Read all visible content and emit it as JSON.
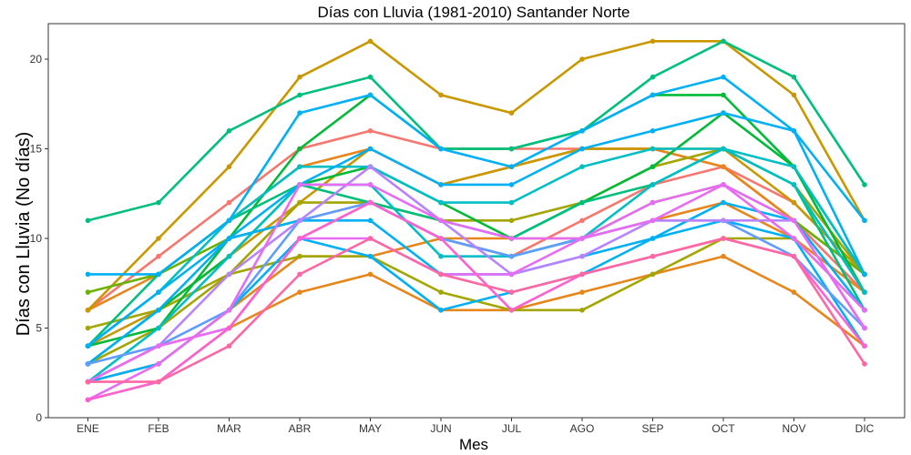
{
  "chart_data": {
    "type": "line",
    "title": "Días con Lluvia (1981-2010)  Santander Norte",
    "xlabel": "Mes",
    "ylabel": "Días con Lluvia (No días)",
    "categories": [
      "ENE",
      "FEB",
      "MAR",
      "ABR",
      "MAY",
      "JUN",
      "JUL",
      "AGO",
      "SEP",
      "OCT",
      "NOV",
      "DIC"
    ],
    "ylim": [
      0,
      22
    ],
    "yticks": [
      0,
      5,
      10,
      15,
      20
    ],
    "grid": false,
    "legend": "none",
    "series": [
      {
        "color": "#F8766D",
        "values": [
          6,
          9,
          12,
          15,
          16,
          15,
          15,
          15,
          15,
          14,
          12,
          8
        ]
      },
      {
        "color": "#F8766D",
        "values": [
          2,
          4,
          5,
          10,
          12,
          10,
          9,
          11,
          13,
          14,
          11,
          7
        ]
      },
      {
        "color": "#E7861B",
        "values": [
          1,
          2,
          5,
          7,
          8,
          6,
          6,
          7,
          8,
          9,
          7,
          4
        ]
      },
      {
        "color": "#E7861B",
        "values": [
          6,
          8,
          11,
          14,
          15,
          13,
          14,
          15,
          15,
          14,
          11,
          8
        ]
      },
      {
        "color": "#E7861B",
        "values": [
          2,
          3,
          6,
          9,
          9,
          10,
          10,
          10,
          11,
          12,
          10,
          7
        ]
      },
      {
        "color": "#C99800",
        "values": [
          6,
          10,
          14,
          19,
          21,
          18,
          17,
          20,
          21,
          21,
          18,
          11
        ]
      },
      {
        "color": "#C99800",
        "values": [
          4,
          6,
          9,
          12,
          15,
          13,
          14,
          15,
          15,
          15,
          12,
          8
        ]
      },
      {
        "color": "#A3A500",
        "values": [
          5,
          6,
          8,
          9,
          9,
          7,
          6,
          6,
          8,
          10,
          10,
          6
        ]
      },
      {
        "color": "#A3A500",
        "values": [
          3,
          5,
          8,
          12,
          12,
          11,
          11,
          12,
          14,
          15,
          13,
          8
        ]
      },
      {
        "color": "#6BB100",
        "values": [
          7,
          8,
          10,
          11,
          12,
          10,
          9,
          10,
          12,
          13,
          11,
          8
        ]
      },
      {
        "color": "#00BA38",
        "values": [
          4,
          5,
          10,
          15,
          18,
          15,
          15,
          16,
          18,
          18,
          14,
          7
        ]
      },
      {
        "color": "#00BA38",
        "values": [
          3,
          6,
          9,
          13,
          14,
          12,
          10,
          12,
          14,
          17,
          14,
          8
        ]
      },
      {
        "color": "#00BF7D",
        "values": [
          4,
          8,
          11,
          13,
          12,
          11,
          10,
          12,
          13,
          15,
          13,
          6
        ]
      },
      {
        "color": "#00BF7D",
        "values": [
          11,
          12,
          16,
          18,
          19,
          15,
          15,
          16,
          19,
          21,
          19,
          13
        ]
      },
      {
        "color": "#00BFC4",
        "values": [
          4,
          7,
          11,
          14,
          14,
          12,
          12,
          14,
          15,
          15,
          13,
          7
        ]
      },
      {
        "color": "#00BFC4",
        "values": [
          2,
          5,
          9,
          13,
          13,
          9,
          9,
          10,
          13,
          15,
          14,
          8
        ]
      },
      {
        "color": "#00B0F6",
        "values": [
          8,
          8,
          11,
          17,
          18,
          15,
          14,
          16,
          18,
          19,
          16,
          11
        ]
      },
      {
        "color": "#00B0F6",
        "values": [
          4,
          7,
          10,
          11,
          11,
          8,
          8,
          9,
          10,
          12,
          11,
          6
        ]
      },
      {
        "color": "#00B0F6",
        "values": [
          3,
          6,
          10,
          13,
          15,
          13,
          13,
          15,
          16,
          17,
          16,
          8
        ]
      },
      {
        "color": "#00B0F6",
        "values": [
          2,
          3,
          6,
          10,
          9,
          6,
          7,
          8,
          10,
          11,
          10,
          4
        ]
      },
      {
        "color": "#619CFF",
        "values": [
          3,
          4,
          6,
          11,
          12,
          10,
          9,
          10,
          11,
          11,
          9,
          5
        ]
      },
      {
        "color": "#B983FF",
        "values": [
          2,
          4,
          8,
          11,
          14,
          11,
          8,
          9,
          11,
          11,
          11,
          5
        ]
      },
      {
        "color": "#E76BF3",
        "values": [
          1,
          3,
          6,
          13,
          13,
          11,
          10,
          10,
          12,
          13,
          11,
          5
        ]
      },
      {
        "color": "#E76BF3",
        "values": [
          2,
          4,
          5,
          10,
          10,
          8,
          8,
          10,
          11,
          13,
          10,
          6
        ]
      },
      {
        "color": "#FD61D1",
        "values": [
          1,
          2,
          5,
          10,
          12,
          10,
          6,
          8,
          9,
          10,
          9,
          4
        ]
      },
      {
        "color": "#FF67A4",
        "values": [
          2,
          2,
          4,
          8,
          10,
          8,
          7,
          8,
          9,
          10,
          9,
          3
        ]
      }
    ]
  }
}
